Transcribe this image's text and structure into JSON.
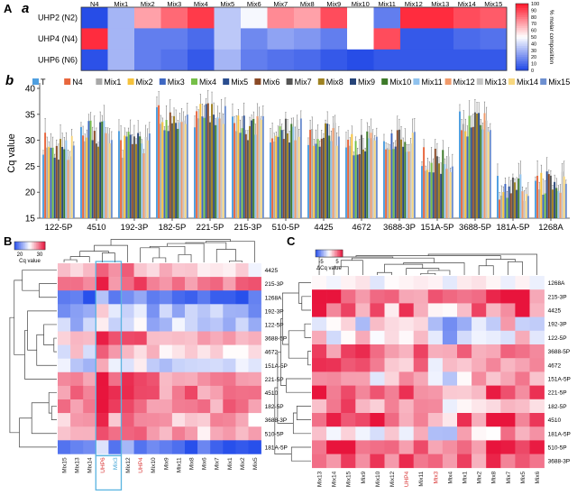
{
  "panel_labels": {
    "A": "A",
    "a": "a",
    "b": "b",
    "B": "B",
    "C": "C"
  },
  "chart_data": [
    {
      "id": "a",
      "type": "heatmap",
      "columns": [
        "N4",
        "Mix1",
        "Mix2",
        "Mix3",
        "Mix4",
        "Mix5",
        "Mix6",
        "Mix7",
        "Mix8",
        "Mix9",
        "Mix10",
        "Mix11",
        "Mix12",
        "Mix13",
        "Mix14",
        "Mix15"
      ],
      "rows": [
        "UHP2 (N2)",
        "UHP4 (N4)",
        "UHP6 (N6)"
      ],
      "values": [
        [
          2,
          30,
          70,
          82,
          92,
          35,
          48,
          75,
          70,
          88,
          50,
          15,
          95,
          95,
          88,
          85
        ],
        [
          95,
          30,
          15,
          15,
          10,
          35,
          18,
          25,
          22,
          15,
          50,
          88,
          5,
          5,
          10,
          12
        ],
        [
          3,
          30,
          15,
          12,
          5,
          30,
          15,
          12,
          10,
          5,
          2,
          5,
          5,
          5,
          5,
          5
        ]
      ],
      "colorbar": {
        "label": "% molar composition",
        "ticks": [
          0,
          10,
          20,
          30,
          40,
          50,
          60,
          70,
          80,
          90,
          100
        ],
        "range": [
          0,
          100
        ]
      }
    },
    {
      "id": "b",
      "type": "bar",
      "categories": [
        "122-5P",
        "4510",
        "192-3P",
        "182-5P",
        "221-5P",
        "215-3P",
        "510-5P",
        "4425",
        "4672",
        "3688-3P",
        "151A-5P",
        "3688-5P",
        "181A-5P",
        "1268A"
      ],
      "series_names": [
        "T",
        "N4",
        "Mix1",
        "Mix2",
        "Mix3",
        "Mix4",
        "Mix5",
        "Mix6",
        "Mix7",
        "Mix8",
        "Mix9",
        "Mix10",
        "Mix11",
        "Mix12",
        "Mix13",
        "Mix14",
        "Mix15"
      ],
      "series_colors": [
        "#4f9fe0",
        "#e8663d",
        "#a8a8a8",
        "#f5c23c",
        "#3e67c2",
        "#76bf48",
        "#2a4d8f",
        "#8a4a26",
        "#555555",
        "#9e8222",
        "#264478",
        "#3d7a29",
        "#8fc2ee",
        "#f09a6a",
        "#c4c4c4",
        "#f7d77f",
        "#6d8fd0"
      ],
      "group_base": [
        28.5,
        31,
        29,
        34,
        34.5,
        32,
        32,
        31,
        29,
        30,
        26,
        33,
        20.5,
        21.5
      ],
      "ylabel": "Cq value",
      "ylim": [
        15,
        40
      ],
      "yticks": [
        15,
        20,
        25,
        30,
        35,
        40
      ]
    },
    {
      "id": "B",
      "type": "heatmap",
      "colorbar": {
        "label": "Cq value",
        "ticks": [
          20,
          30
        ]
      },
      "columns": [
        "Mix15",
        "Mix13",
        "Mix14",
        "UHP6",
        "Mix3",
        "Mix12",
        "UHP4",
        "Mix10",
        "Mix9",
        "Mix11",
        "Mix8",
        "Mix6",
        "Mix7",
        "Mix1",
        "Mix2",
        "Mix5"
      ],
      "column_label_colors": {
        "UHP6": "#d93636",
        "Mix3": "#4aa8d8",
        "UHP4": "#d93636"
      },
      "rows": [
        "4425",
        "215-3P",
        "1268A",
        "192-3P",
        "122-5P",
        "3688-5P",
        "4672",
        "151A-5P",
        "221-5P",
        "4510",
        "182-5P",
        "3688-3P",
        "510-5P",
        "181A-5P"
      ]
    },
    {
      "id": "C",
      "type": "heatmap",
      "colorbar": {
        "label": "ΔCq value",
        "ticks": [
          -5,
          5
        ]
      },
      "columns": [
        "Mix13",
        "Mix14",
        "Mix15",
        "Mix9",
        "Mix10",
        "Mix12",
        "UHP4",
        "Mix11",
        "Mix3",
        "Mix4",
        "Mix1",
        "Mix2",
        "Mix8",
        "Mix7",
        "Mix5",
        "Mix6"
      ],
      "column_label_colors": {
        "UHP4": "#d93636",
        "Mix3": "#d93636"
      },
      "rows": [
        "1268A",
        "215-3P",
        "4425",
        "192-3P",
        "122-5P",
        "3688-5P",
        "4672",
        "151A-5P",
        "221-5P",
        "182-5P",
        "4510",
        "181A-5P",
        "510-5P",
        "3688-3P"
      ]
    }
  ]
}
